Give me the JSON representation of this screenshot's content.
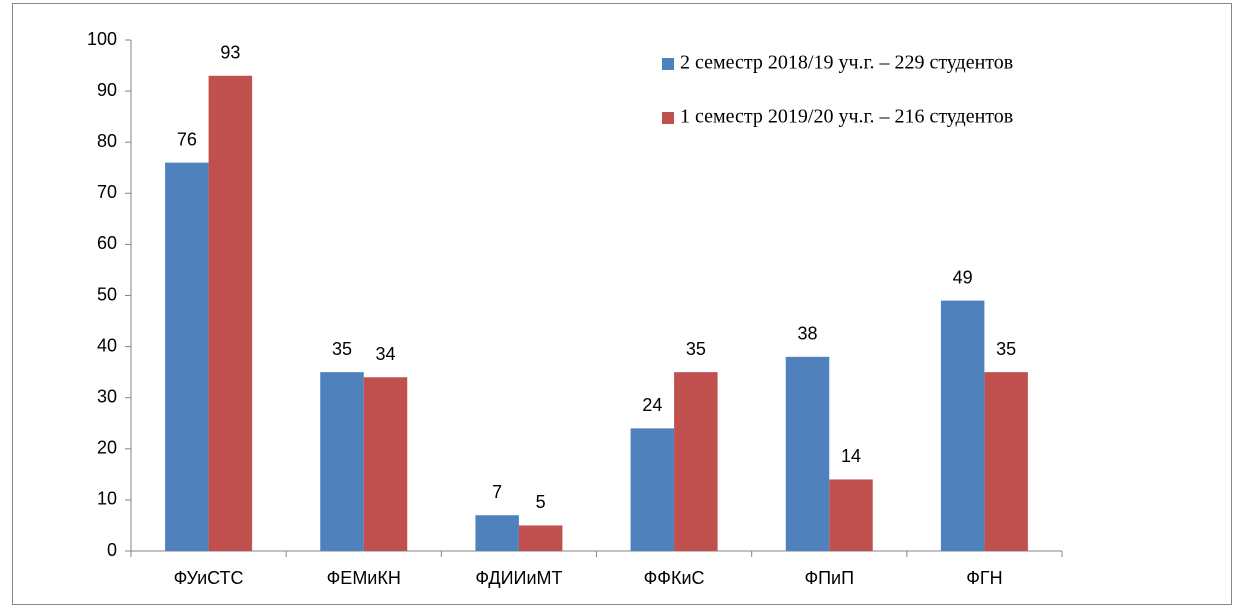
{
  "chart_data": {
    "type": "bar",
    "categories": [
      "ФУиСТС",
      "ФЕМиКН",
      "ФДИИиМТ",
      "ФФКиС",
      "ФПиП",
      "ФГН"
    ],
    "series": [
      {
        "name": "2 семестр 2018/19 уч.г. – 229 студентов",
        "color": "#4f81bd",
        "values": [
          76,
          35,
          7,
          24,
          38,
          49
        ]
      },
      {
        "name": "1 семестр 2019/20 уч.г. –  216 студентов",
        "color": "#c0504d",
        "values": [
          93,
          34,
          5,
          35,
          14,
          35
        ]
      }
    ],
    "ylim": [
      0,
      100
    ],
    "yticks": [
      0,
      10,
      20,
      30,
      40,
      50,
      60,
      70,
      80,
      90,
      100
    ],
    "grid": false,
    "legend": "top-right",
    "data_labels": true
  }
}
